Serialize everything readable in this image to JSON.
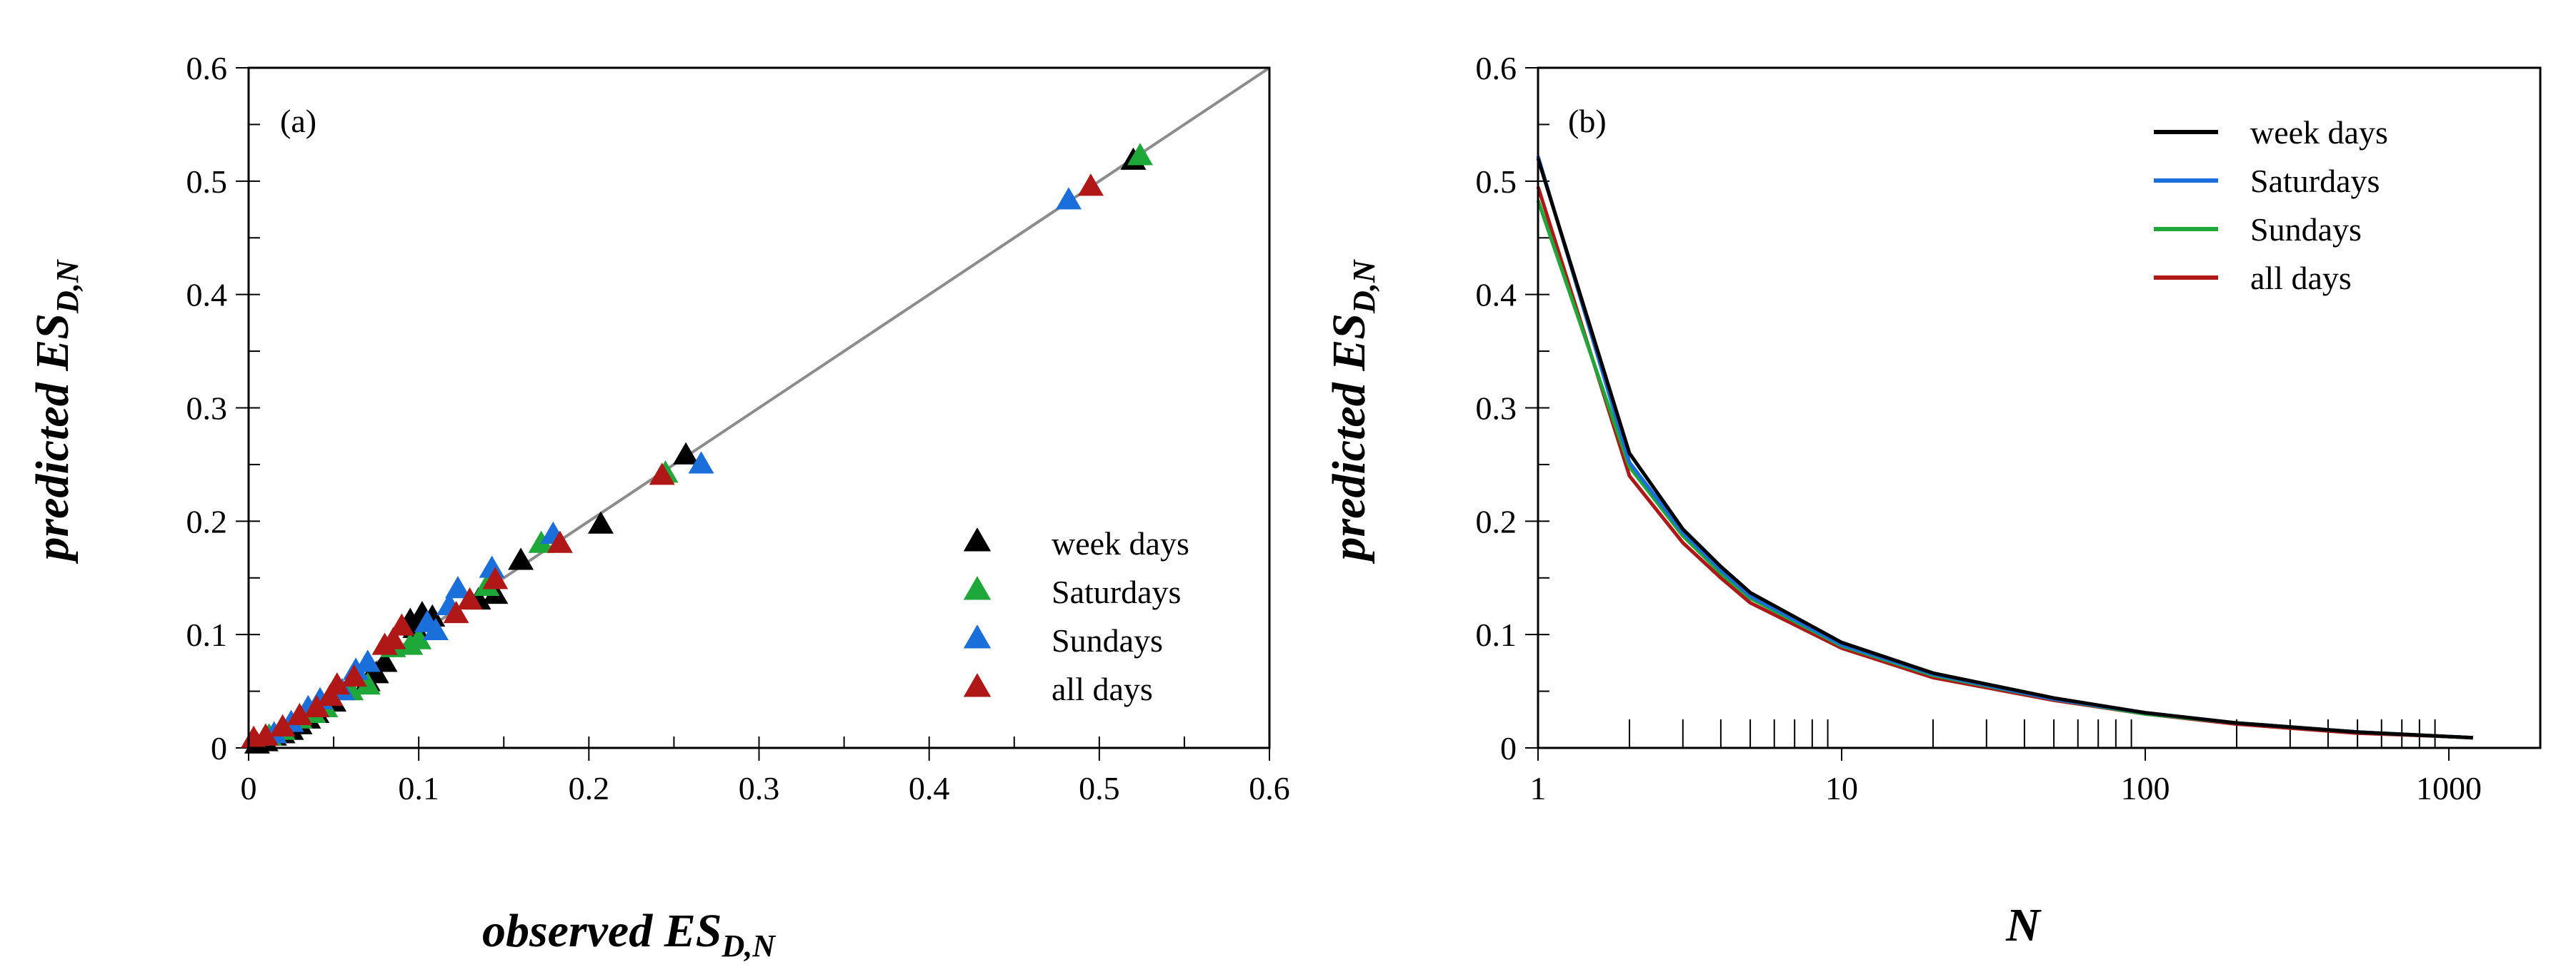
{
  "chart_data": [
    {
      "panel_label": "(a)",
      "type": "scatter",
      "xlabel": {
        "main": "observed ES",
        "sub": "D,N"
      },
      "ylabel": {
        "main": "predicted ES",
        "sub": "D,N"
      },
      "xlim": [
        0,
        0.6
      ],
      "ylim": [
        0,
        0.6
      ],
      "xticks": [
        "0",
        "0.1",
        "0.2",
        "0.3",
        "0.4",
        "0.5",
        "0.6"
      ],
      "yticks": [
        "0",
        "0.1",
        "0.2",
        "0.3",
        "0.4",
        "0.5",
        "0.6"
      ],
      "reference_line": {
        "x": [
          0,
          0.6
        ],
        "y": [
          0,
          0.6
        ],
        "color": "#8c8c8c"
      },
      "legend_position": "bottom-right",
      "series": [
        {
          "name": "week days",
          "color": "#000000",
          "points": [
            [
              0.52,
              0.518
            ],
            [
              0.257,
              0.258
            ],
            [
              0.207,
              0.197
            ],
            [
              0.16,
              0.165
            ],
            [
              0.145,
              0.135
            ],
            [
              0.135,
              0.13
            ],
            [
              0.102,
              0.118
            ],
            [
              0.098,
              0.105
            ],
            [
              0.095,
              0.112
            ],
            [
              0.108,
              0.115
            ],
            [
              0.08,
              0.075
            ],
            [
              0.075,
              0.065
            ],
            [
              0.07,
              0.058
            ],
            [
              0.06,
              0.05
            ],
            [
              0.05,
              0.04
            ],
            [
              0.045,
              0.035
            ],
            [
              0.04,
              0.03
            ],
            [
              0.035,
              0.025
            ],
            [
              0.03,
              0.02
            ],
            [
              0.025,
              0.015
            ],
            [
              0.02,
              0.012
            ],
            [
              0.015,
              0.01
            ],
            [
              0.01,
              0.005
            ],
            [
              0.005,
              0.003
            ]
          ]
        },
        {
          "name": "Saturdays",
          "color": "#1fa83a",
          "points": [
            [
              0.524,
              0.522
            ],
            [
              0.245,
              0.242
            ],
            [
              0.172,
              0.18
            ],
            [
              0.14,
              0.142
            ],
            [
              0.1,
              0.095
            ],
            [
              0.095,
              0.09
            ],
            [
              0.085,
              0.088
            ],
            [
              0.07,
              0.055
            ],
            [
              0.06,
              0.05
            ],
            [
              0.045,
              0.035
            ],
            [
              0.038,
              0.03
            ],
            [
              0.03,
              0.025
            ],
            [
              0.02,
              0.015
            ],
            [
              0.012,
              0.01
            ]
          ]
        },
        {
          "name": "Sundays",
          "color": "#1a6fdb",
          "points": [
            [
              0.482,
              0.483
            ],
            [
              0.266,
              0.25
            ],
            [
              0.179,
              0.188
            ],
            [
              0.143,
              0.158
            ],
            [
              0.123,
              0.14
            ],
            [
              0.118,
              0.125
            ],
            [
              0.11,
              0.103
            ],
            [
              0.105,
              0.11
            ],
            [
              0.07,
              0.075
            ],
            [
              0.063,
              0.068
            ],
            [
              0.055,
              0.05
            ],
            [
              0.042,
              0.042
            ],
            [
              0.035,
              0.035
            ],
            [
              0.025,
              0.022
            ],
            [
              0.015,
              0.012
            ]
          ]
        },
        {
          "name": "all days",
          "color": "#b01818",
          "points": [
            [
              0.495,
              0.495
            ],
            [
              0.243,
              0.24
            ],
            [
              0.183,
              0.18
            ],
            [
              0.145,
              0.148
            ],
            [
              0.13,
              0.13
            ],
            [
              0.122,
              0.118
            ],
            [
              0.09,
              0.107
            ],
            [
              0.085,
              0.095
            ],
            [
              0.08,
              0.09
            ],
            [
              0.062,
              0.062
            ],
            [
              0.052,
              0.055
            ],
            [
              0.048,
              0.045
            ],
            [
              0.04,
              0.035
            ],
            [
              0.03,
              0.028
            ],
            [
              0.02,
              0.018
            ],
            [
              0.01,
              0.01
            ],
            [
              0.003,
              0.008
            ]
          ]
        }
      ]
    },
    {
      "panel_label": "(b)",
      "type": "line",
      "xscale": "log",
      "xlabel": {
        "main": "N",
        "sub": ""
      },
      "ylabel": {
        "main": "predicted ES",
        "sub": "D,N"
      },
      "xlim": [
        1,
        2000
      ],
      "ylim": [
        0,
        0.6
      ],
      "xticks": [
        {
          "value": 1,
          "label": "1"
        },
        {
          "value": 10,
          "label": "10"
        },
        {
          "value": 100,
          "label": "100"
        },
        {
          "value": 1000,
          "label": "1000"
        }
      ],
      "yticks": [
        "0",
        "0.1",
        "0.2",
        "0.3",
        "0.4",
        "0.5",
        "0.6"
      ],
      "legend_position": "top-right",
      "x": [
        1,
        2,
        3,
        4,
        5,
        10,
        20,
        50,
        100,
        200,
        500,
        1000,
        1200
      ],
      "series": [
        {
          "name": "week days",
          "color": "#000000",
          "values": [
            0.52,
            0.26,
            0.193,
            0.16,
            0.137,
            0.093,
            0.066,
            0.044,
            0.031,
            0.022,
            0.014,
            0.01,
            0.009
          ]
        },
        {
          "name": "Saturdays",
          "color": "#1a6fdb",
          "values": [
            0.522,
            0.252,
            0.19,
            0.157,
            0.134,
            0.091,
            0.065,
            0.043,
            0.031,
            0.022,
            0.014,
            0.01,
            0.009
          ]
        },
        {
          "name": "Sundays",
          "color": "#1fa83a",
          "values": [
            0.483,
            0.248,
            0.187,
            0.154,
            0.132,
            0.09,
            0.064,
            0.043,
            0.03,
            0.022,
            0.014,
            0.01,
            0.009
          ]
        },
        {
          "name": "all days",
          "color": "#b01818",
          "values": [
            0.495,
            0.24,
            0.181,
            0.15,
            0.128,
            0.088,
            0.062,
            0.042,
            0.03,
            0.021,
            0.013,
            0.01,
            0.009
          ]
        }
      ]
    }
  ]
}
